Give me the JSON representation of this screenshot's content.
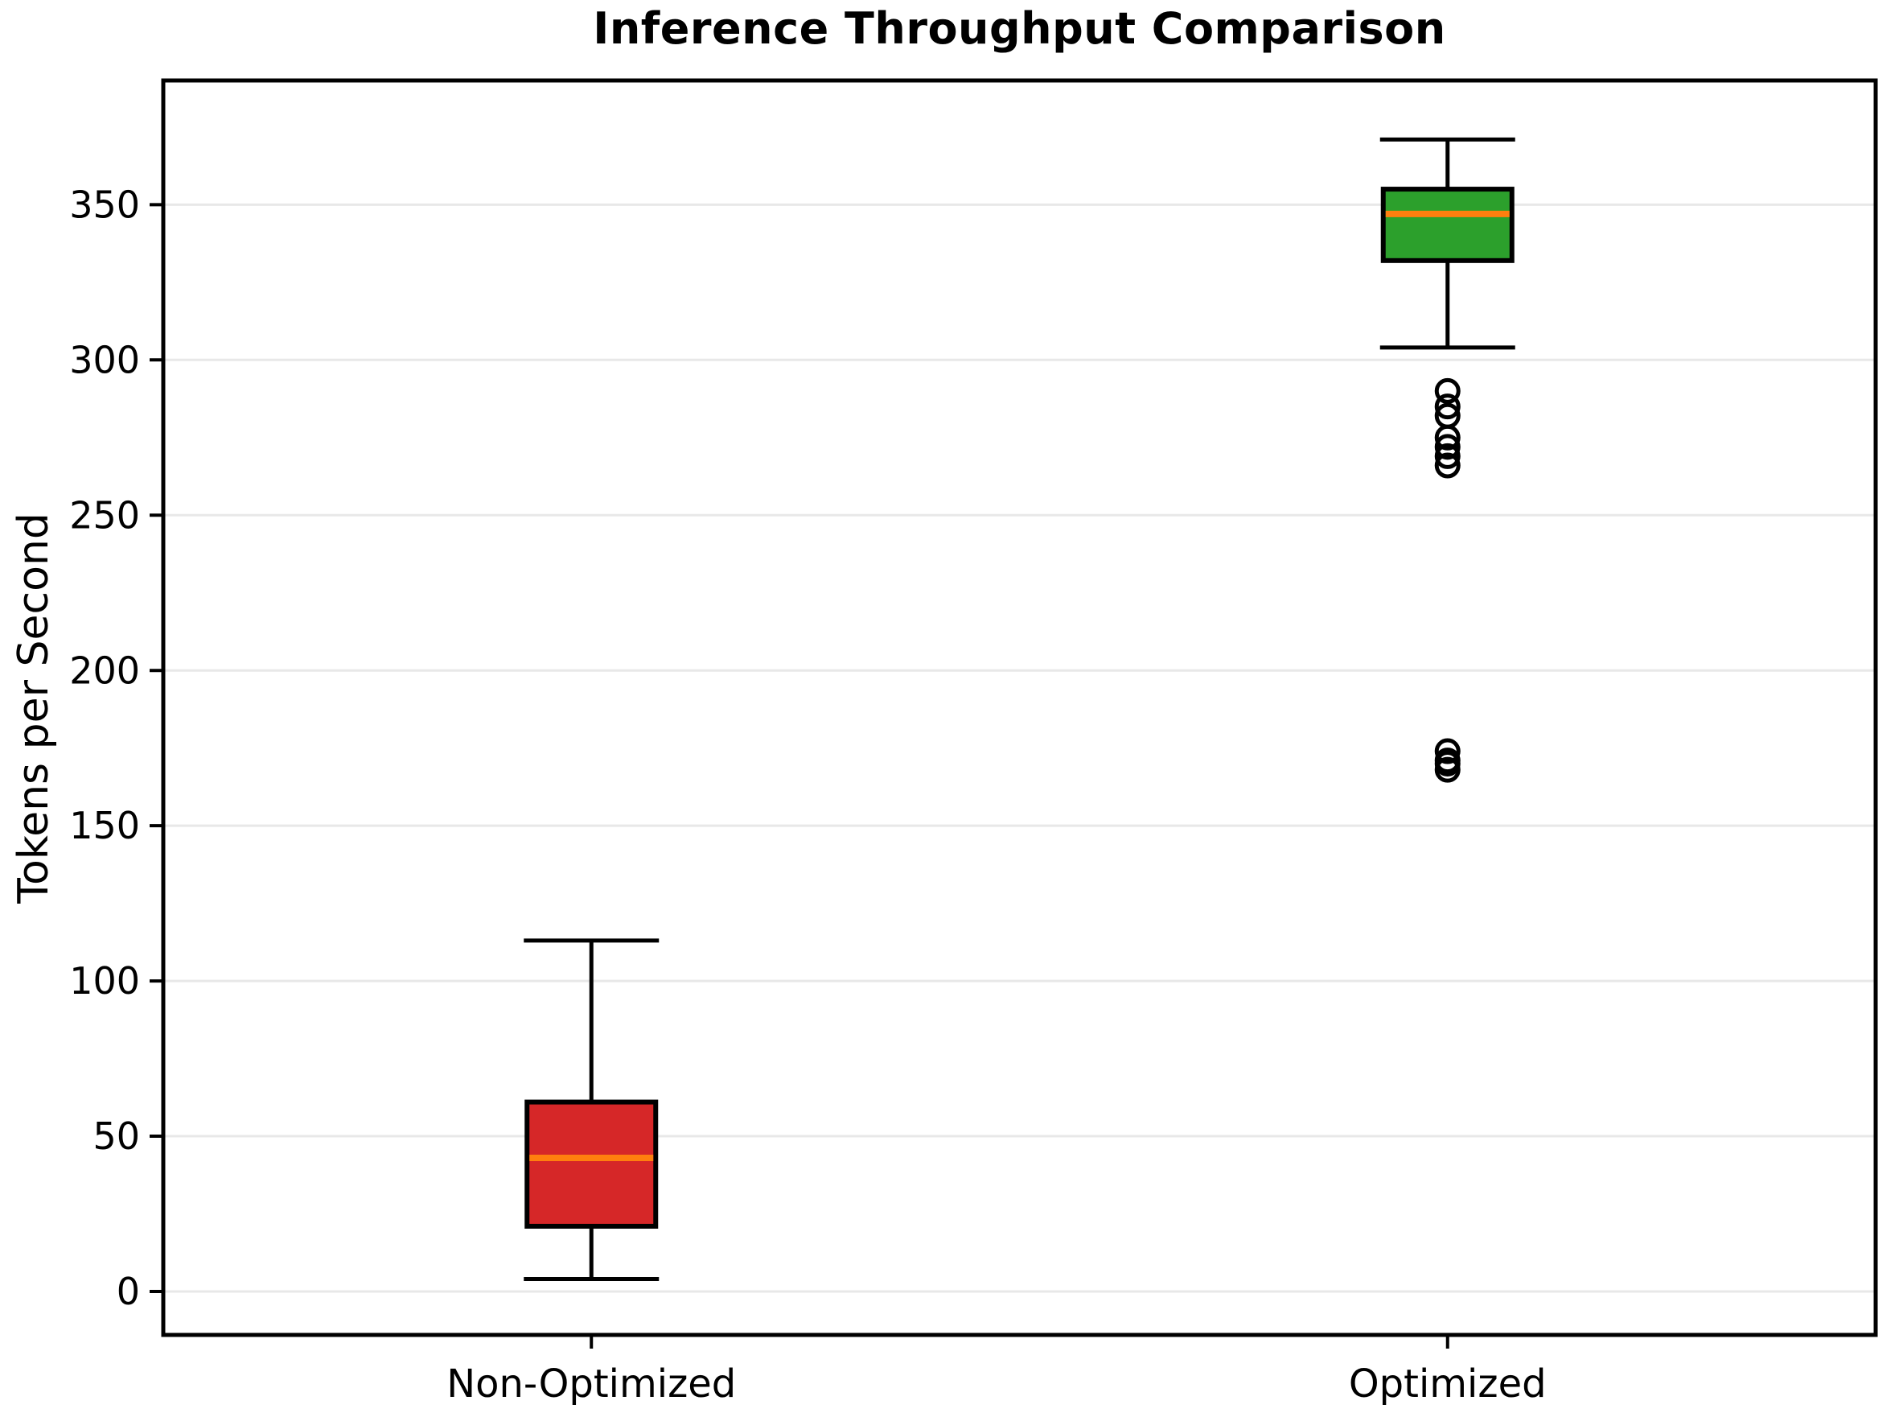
{
  "page": {
    "background": "#ffffff"
  },
  "chart_data": {
    "type": "box",
    "title": "Inference Throughput Comparison",
    "ylabel": "Tokens per Second",
    "xlabel": "",
    "categories": [
      "Non-Optimized",
      "Optimized"
    ],
    "yticks": [
      0,
      50,
      100,
      150,
      200,
      250,
      300,
      350
    ],
    "ylim": [
      -14,
      390
    ],
    "grid": "horizontal",
    "gridline_color": "#e8e8e8",
    "edge_color": "#000000",
    "median_color": "#ff7f0e",
    "series": [
      {
        "name": "Non-Optimized",
        "box_color": "#d62728",
        "whisker_low": 4,
        "q1": 21,
        "median": 43,
        "q3": 61,
        "whisker_high": 113,
        "outliers": []
      },
      {
        "name": "Optimized",
        "box_color": "#2ca02c",
        "whisker_low": 304,
        "q1": 332,
        "median": 347,
        "q3": 355,
        "whisker_high": 371,
        "outliers": [
          290,
          285,
          282,
          275,
          272,
          269,
          266,
          174,
          171,
          170,
          168
        ]
      }
    ]
  }
}
